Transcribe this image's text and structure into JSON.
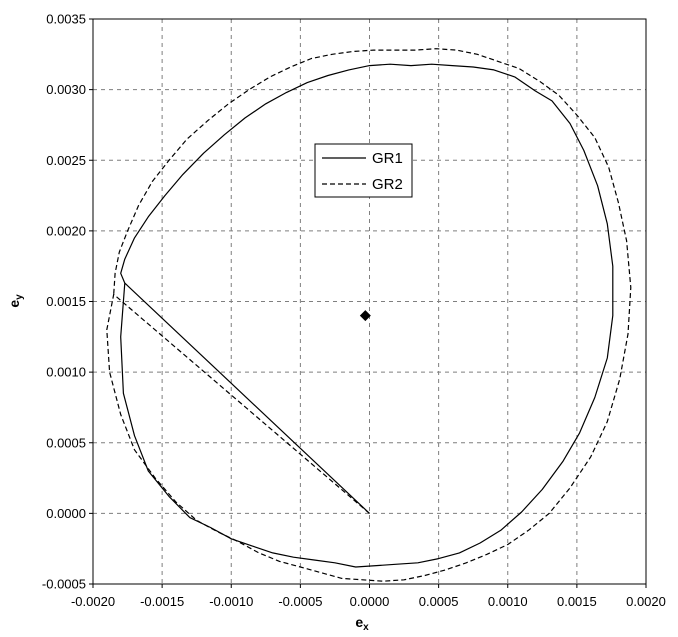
{
  "chart_data": {
    "type": "line",
    "title": "",
    "xlabel": "e",
    "xlabel_sub": "x",
    "ylabel": "e",
    "ylabel_sub": "y",
    "xlim": [
      -0.002,
      0.002
    ],
    "ylim": [
      -0.0005,
      0.0035
    ],
    "xticks": [
      -0.002,
      -0.0015,
      -0.001,
      -0.0005,
      0,
      0.0005,
      0.001,
      0.0015,
      0.002
    ],
    "xtick_labels": [
      "-0.0020",
      "-0.0015",
      "-0.0010",
      "-0.0005",
      "0.0000",
      "0.0005",
      "0.0010",
      "0.0015",
      "0.0020"
    ],
    "yticks": [
      -0.0005,
      0,
      0.0005,
      0.001,
      0.0015,
      0.002,
      0.0025,
      0.003,
      0.0035
    ],
    "ytick_labels": [
      "-0.0005",
      "0.0000",
      "0.0005",
      "0.0010",
      "0.0015",
      "0.0020",
      "0.0025",
      "0.0030",
      "0.0035"
    ],
    "grid": true,
    "legend": "upper-center",
    "series": [
      {
        "name": "GR1",
        "style": "solid",
        "x": [
          0.0,
          -0.00177,
          -0.0018,
          -0.00178,
          -0.0017,
          -0.0016,
          -0.00145,
          -0.0013,
          -0.00115,
          -0.001,
          -0.00085,
          -0.0007,
          -0.00055,
          -0.0004,
          -0.00025,
          -0.0001,
          5e-05,
          0.0002,
          0.00035,
          0.0005,
          0.00065,
          0.0008,
          0.00095,
          0.0011,
          0.00125,
          0.0014,
          0.00152,
          0.00163,
          0.00172,
          0.00176,
          0.00176,
          0.00172,
          0.00165,
          0.00155,
          0.00145,
          0.00132,
          0.0012,
          0.00105,
          0.0009,
          0.00075,
          0.0006,
          0.00045,
          0.0003,
          0.00015,
          0.0,
          -0.00015,
          -0.0003,
          -0.00045,
          -0.0006,
          -0.00075,
          -0.0009,
          -0.00105,
          -0.0012,
          -0.00135,
          -0.00148,
          -0.0016,
          -0.0017,
          -0.00177,
          -0.0018,
          -0.00177
        ],
        "y": [
          0.0,
          0.00163,
          0.00125,
          0.00085,
          0.00055,
          0.0003,
          0.00012,
          -3e-05,
          -0.0001,
          -0.00018,
          -0.00023,
          -0.00028,
          -0.00031,
          -0.00033,
          -0.00035,
          -0.00038,
          -0.00037,
          -0.00036,
          -0.00035,
          -0.00032,
          -0.00028,
          -0.00021,
          -0.00012,
          1e-05,
          0.00017,
          0.00037,
          0.00057,
          0.00082,
          0.0011,
          0.0014,
          0.00175,
          0.00205,
          0.00232,
          0.00257,
          0.00276,
          0.00292,
          0.00299,
          0.00309,
          0.00314,
          0.00316,
          0.00317,
          0.00318,
          0.00317,
          0.00318,
          0.00317,
          0.00314,
          0.0031,
          0.00305,
          0.00298,
          0.0029,
          0.0028,
          0.00268,
          0.00255,
          0.0024,
          0.00225,
          0.0021,
          0.00195,
          0.0018,
          0.0017,
          0.00163
        ]
      },
      {
        "name": "GR2",
        "style": "dashed",
        "x": [
          0.0,
          -0.00185,
          -0.0019,
          -0.00188,
          -0.0018,
          -0.0017,
          -0.00155,
          -0.0014,
          -0.00125,
          -0.0011,
          -0.00095,
          -0.0008,
          -0.00065,
          -0.0005,
          -0.00035,
          -0.0002,
          -5e-05,
          0.0001,
          0.00025,
          0.0004,
          0.00055,
          0.0007,
          0.00085,
          0.001,
          0.00115,
          0.0013,
          0.00145,
          0.0016,
          0.00172,
          0.00181,
          0.00187,
          0.00189,
          0.00186,
          0.0018,
          0.00173,
          0.00163,
          0.0015,
          0.00137,
          0.00123,
          0.00108,
          0.00093,
          0.00078,
          0.00063,
          0.00048,
          0.00033,
          0.00018,
          3e-05,
          -0.00012,
          -0.00027,
          -0.00042,
          -0.00057,
          -0.00072,
          -0.00087,
          -0.00102,
          -0.00117,
          -0.00132,
          -0.00145,
          -0.00157,
          -0.00167,
          -0.00175,
          -0.00181,
          -0.00184,
          -0.00185
        ],
        "y": [
          0.0,
          0.00155,
          0.0013,
          0.001,
          0.0007,
          0.00045,
          0.00025,
          8e-05,
          -5e-05,
          -0.00013,
          -0.0002,
          -0.00028,
          -0.00034,
          -0.00038,
          -0.00042,
          -0.00046,
          -0.00047,
          -0.00048,
          -0.00047,
          -0.00044,
          -0.0004,
          -0.00035,
          -0.00029,
          -0.00022,
          -0.00012,
          0.0,
          0.00018,
          0.0004,
          0.00065,
          0.00095,
          0.00127,
          0.0016,
          0.00193,
          0.0022,
          0.00245,
          0.00266,
          0.00282,
          0.00296,
          0.00306,
          0.00315,
          0.0032,
          0.00325,
          0.00328,
          0.00329,
          0.00328,
          0.00328,
          0.00328,
          0.00327,
          0.00325,
          0.00322,
          0.00316,
          0.00309,
          0.003,
          0.0029,
          0.00278,
          0.00265,
          0.0025,
          0.00235,
          0.00218,
          0.002,
          0.00185,
          0.0017,
          0.00155
        ]
      }
    ],
    "points": [
      {
        "x": -3e-05,
        "y": 0.0014,
        "marker": "diamond"
      }
    ]
  }
}
